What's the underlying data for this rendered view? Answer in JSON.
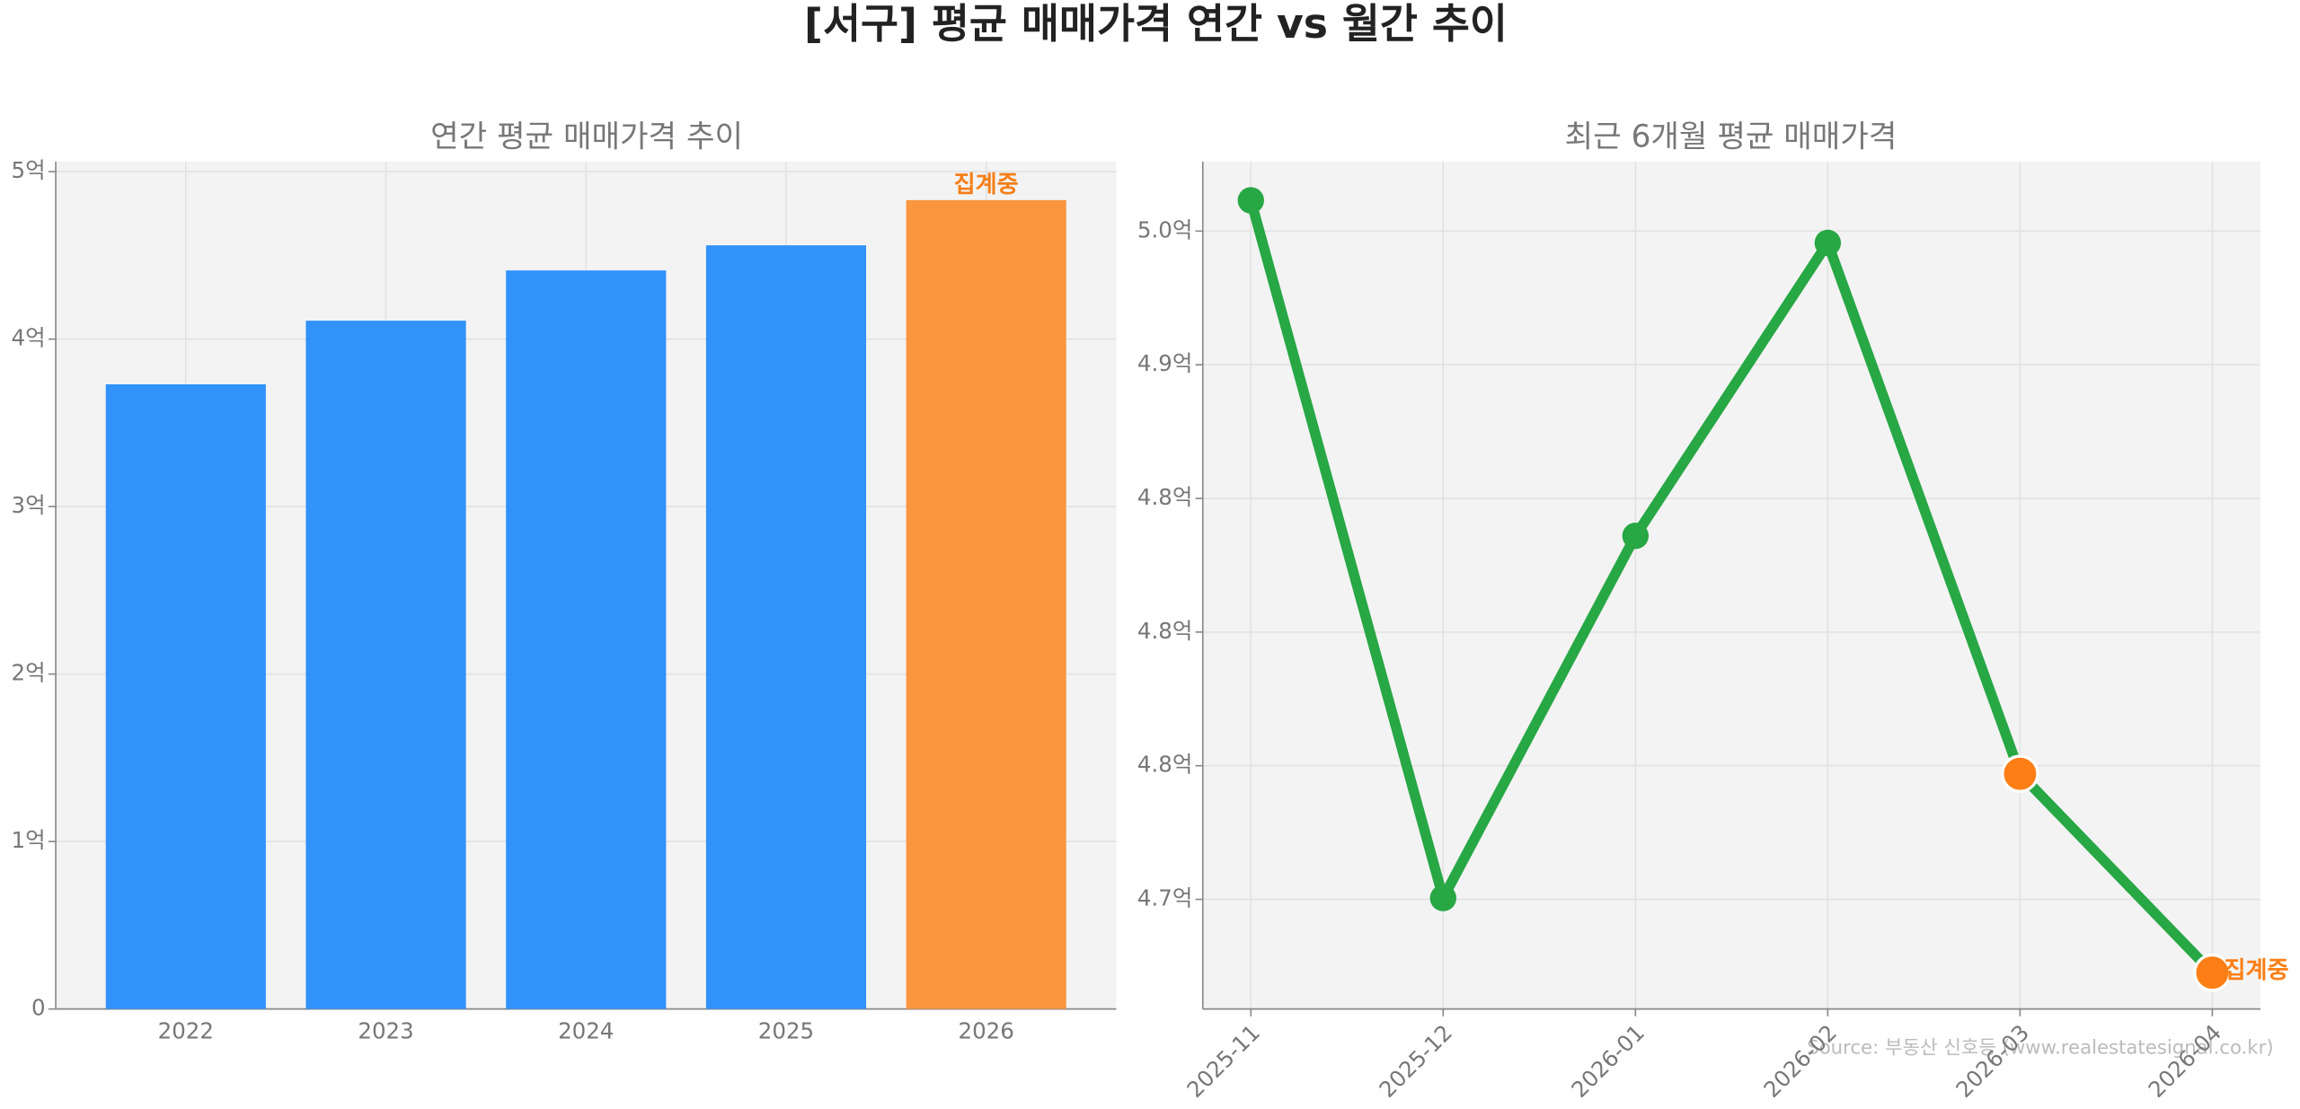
{
  "chart_data": [
    {
      "type": "bar",
      "main_title": "[서구] 평균 매매가격 연간 vs 월간 추이",
      "title": "연간 평균 매매가격 추이",
      "categories": [
        "2022",
        "2023",
        "2024",
        "2025",
        "2026"
      ],
      "values": [
        3.73,
        4.11,
        4.41,
        4.56,
        4.83
      ],
      "colors": [
        "#3192fb",
        "#3192fb",
        "#3192fb",
        "#3192fb",
        "#f9963e"
      ],
      "annotation": {
        "text": "집계중",
        "index": 4,
        "color": "#f57f17"
      },
      "ylim": [
        0,
        5.06
      ],
      "yticks": [
        0,
        {
          "value": 1,
          "label": "1억"
        },
        {
          "value": 2,
          "label": "2억"
        },
        {
          "value": 3,
          "label": "3억"
        },
        {
          "value": 4,
          "label": "4억"
        },
        {
          "value": 5,
          "label": "5억"
        }
      ],
      "grid": true
    },
    {
      "type": "line",
      "title": "최근 6개월 평균 매매가격",
      "categories": [
        "2025-11",
        "2025-12",
        "2026-01",
        "2026-02",
        "2026-03",
        "2026-04"
      ],
      "values": [
        4.9615,
        4.7005,
        4.836,
        4.9456,
        4.747,
        4.6726
      ],
      "color": "#28a745",
      "point_colors": [
        "#28a745",
        "#28a745",
        "#28a745",
        "#28a745",
        "#fd7e14",
        "#fd7e14"
      ],
      "annotation": {
        "text": "집계중",
        "index": 5,
        "color": "#fd7e14"
      },
      "ylim": [
        4.659,
        4.976
      ],
      "yticks": [
        {
          "value": 4.7,
          "label": "4.7억"
        },
        {
          "value": 4.75,
          "label": "4.8억"
        },
        {
          "value": 4.8,
          "label": "4.8억"
        },
        {
          "value": 4.85,
          "label": "4.8억"
        },
        {
          "value": 4.9,
          "label": "4.9억"
        },
        {
          "value": 4.95,
          "label": "5.0억"
        }
      ],
      "grid": true,
      "source": "Source: 부동산 신호등 (www.realestatesignal.co.kr)"
    }
  ]
}
